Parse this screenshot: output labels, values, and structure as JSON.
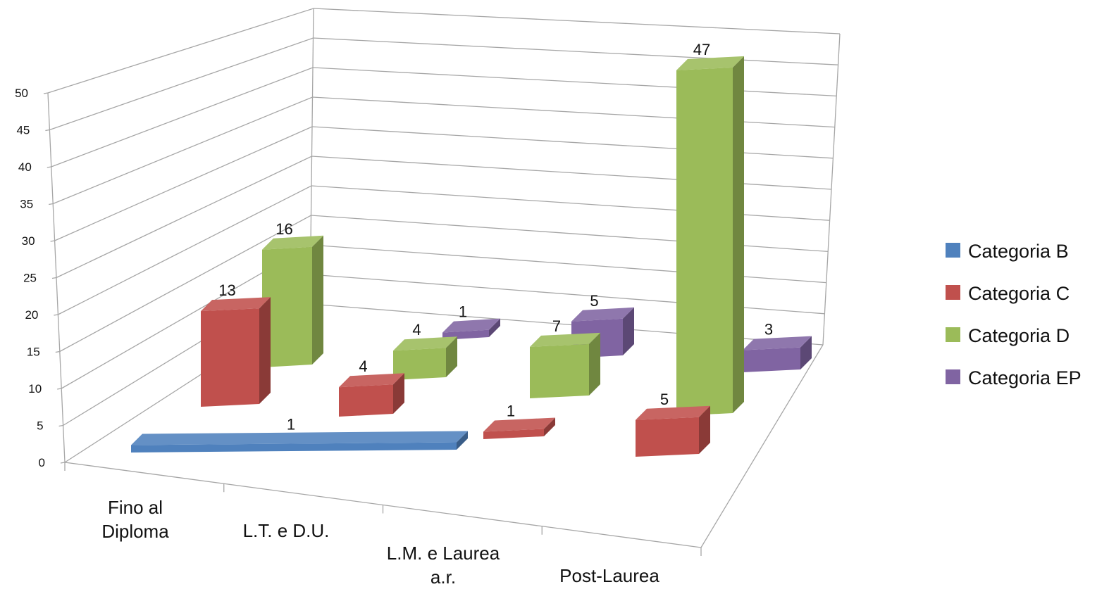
{
  "chart_data": {
    "type": "bar",
    "subtype": "3d-column",
    "categories": [
      [
        "Fino al",
        "Diploma"
      ],
      [
        "L.T. e D.U."
      ],
      [
        "L.M. e Laurea",
        "a.r."
      ],
      [
        "Post-Laurea"
      ]
    ],
    "series": [
      {
        "name": "Categoria B",
        "color": "#4F81BD",
        "values": [
          1,
          null,
          null,
          null
        ]
      },
      {
        "name": "Categoria C",
        "color": "#C0504D",
        "values": [
          13,
          4,
          1,
          5
        ]
      },
      {
        "name": "Categoria D",
        "color": "#9BBB59",
        "values": [
          16,
          4,
          7,
          47
        ]
      },
      {
        "name": "Categoria EP",
        "color": "#8064A2",
        "values": [
          null,
          1,
          5,
          3
        ]
      }
    ],
    "yticks": [
      "0",
      "5",
      "10",
      "15",
      "20",
      "25",
      "30",
      "35",
      "40",
      "45",
      "50"
    ],
    "ylim": [
      0,
      50
    ],
    "grid": true,
    "legend": "right"
  }
}
